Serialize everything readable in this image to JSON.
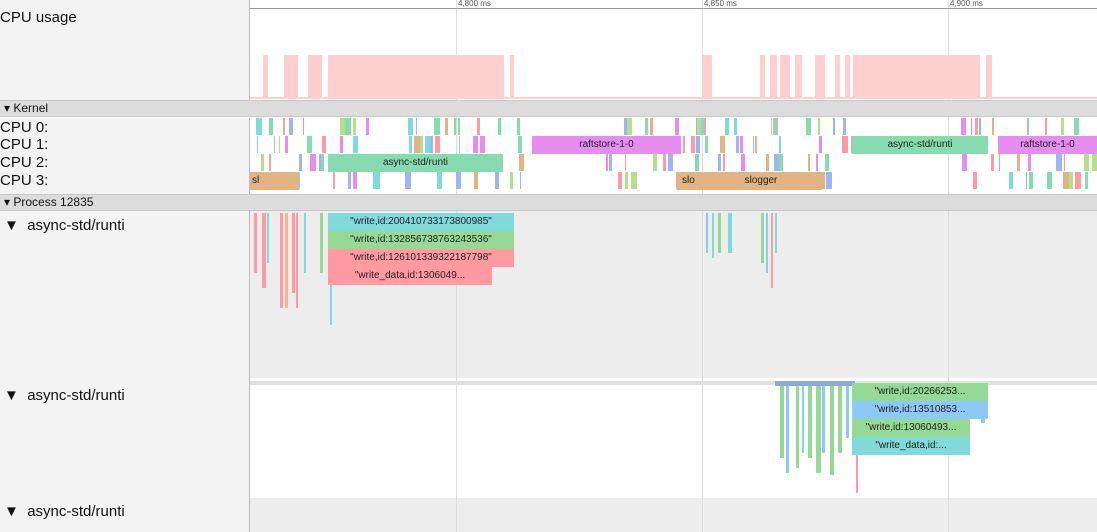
{
  "timeline": {
    "ticks": [
      "4,800 ms",
      "4,850 ms",
      "4,900 ms"
    ]
  },
  "cpu_usage": {
    "title": "CPU usage"
  },
  "kernel": {
    "title": "Kernel",
    "cpus": [
      {
        "label": "CPU 0:",
        "slices": []
      },
      {
        "label": "CPU 1:",
        "slices": [
          "raftstore-1-0",
          "async-std/runti",
          "raftstore-1-0"
        ]
      },
      {
        "label": "CPU 2:",
        "slices": [
          "async-std/runti"
        ]
      },
      {
        "label": "CPU 3:",
        "slices": [
          "sl",
          "slo",
          "slogger"
        ]
      }
    ]
  },
  "process": {
    "title": "Process 12835",
    "threads": [
      {
        "name": "async-std/runti",
        "slices": [
          "\"write,id:200410733173800985\"",
          "\"write,id:132856738763243536\"",
          "\"write,id:126101339322187798\"",
          "\"write_data,id:1306049..."
        ]
      },
      {
        "name": "async-std/runti",
        "slices": [
          "\"write,id:20266253...",
          "\"write,id:13510853...",
          "\"write,id:13060493...",
          "\"write_data,id:..."
        ]
      },
      {
        "name": "async-std/runti",
        "slices": []
      }
    ]
  }
}
